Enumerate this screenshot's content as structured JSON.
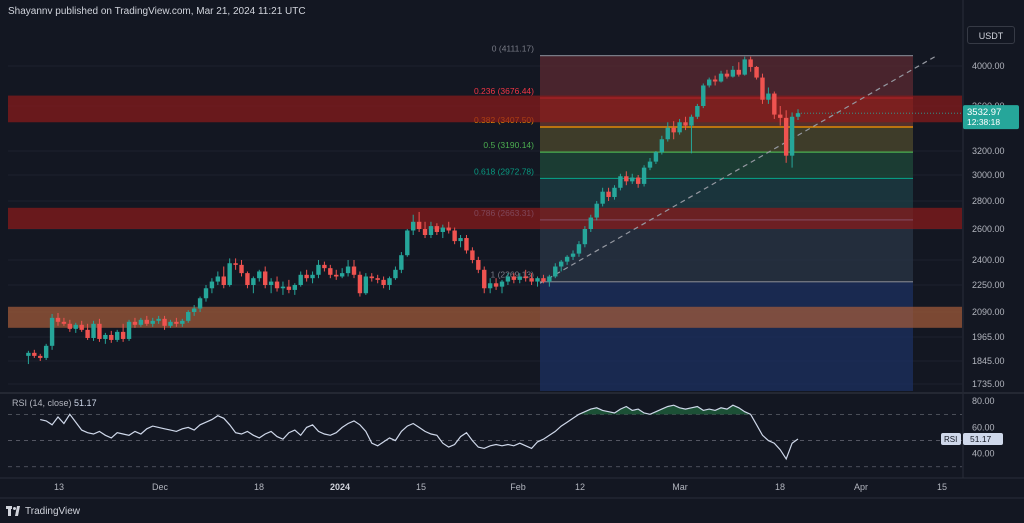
{
  "header": {
    "publisher_line": "Shayannv published on TradingView.com, Mar 21, 2024 11:21 UTC"
  },
  "currency_button": "USDT",
  "footer": {
    "logo_text": "TradingView"
  },
  "colors": {
    "background": "#131722",
    "up": "#26a69a",
    "down": "#ef5350",
    "grid": "#1e222d",
    "text": "#b2b5be",
    "resistance_zone": "#8b1a1a",
    "support_zone": "#a35b3a",
    "rsi_line": "#cfd8ea",
    "price_label": "#26a69a"
  },
  "chart_data": [
    {
      "type": "candlestick",
      "title": "",
      "y_axis_ticks": [
        "4000.00",
        "3600.00",
        "3200.00",
        "3000.00",
        "2800.00",
        "2600.00",
        "2400.00",
        "2250.00",
        "2090.00",
        "1965.00",
        "1845.00",
        "1735.00"
      ],
      "x_axis_ticks": [
        "13",
        "Dec",
        "18",
        "2024",
        "15",
        "Feb",
        "12",
        "Mar",
        "18",
        "Apr",
        "15"
      ],
      "current_price_label": "3532.97",
      "countdown_label": "12:38:18",
      "fibonacci_levels": [
        {
          "label": "0 (4111.17)",
          "ratio": "0",
          "price": 4111.17,
          "color": "#787b86"
        },
        {
          "label": "0.236 (3676.44)",
          "ratio": "0.236",
          "price": 3676.44,
          "color": "#f23645"
        },
        {
          "label": "0.382 (3407.50)",
          "ratio": "0.382",
          "price": 3407.5,
          "color": "#ff9800"
        },
        {
          "label": "0.5 (3190.14)",
          "ratio": "0.5",
          "price": 3190.14,
          "color": "#4caf50"
        },
        {
          "label": "0.618 (2972.78)",
          "ratio": "0.618",
          "price": 2972.78,
          "color": "#089981"
        },
        {
          "label": "0.786 (2663.31)",
          "ratio": "0.786",
          "price": 2663.31,
          "color": "#64b5f6"
        },
        {
          "label": "1 (2269.13)",
          "ratio": "1",
          "price": 2269.13,
          "color": "#787b86"
        }
      ],
      "zones": [
        {
          "name": "resistance",
          "price_low": 3450,
          "price_high": 3700
        },
        {
          "name": "mid-resistance",
          "price_low": 2600,
          "price_high": 2750
        },
        {
          "name": "support",
          "price_low": 2010,
          "price_high": 2120
        }
      ],
      "trendline_from": {
        "date": "2024-02-05",
        "price": 2260
      },
      "trendline_to": {
        "date": "2024-04-12",
        "price": 4110
      },
      "candles": [
        {
          "o": 1870,
          "h": 1895,
          "l": 1830,
          "c": 1885
        },
        {
          "o": 1885,
          "h": 1900,
          "l": 1860,
          "c": 1870
        },
        {
          "o": 1870,
          "h": 1880,
          "l": 1845,
          "c": 1860
        },
        {
          "o": 1860,
          "h": 1930,
          "l": 1850,
          "c": 1920
        },
        {
          "o": 1920,
          "h": 2080,
          "l": 1900,
          "c": 2060
        },
        {
          "o": 2060,
          "h": 2085,
          "l": 2020,
          "c": 2040
        },
        {
          "o": 2040,
          "h": 2060,
          "l": 2020,
          "c": 2030
        },
        {
          "o": 2030,
          "h": 2050,
          "l": 1990,
          "c": 2005
        },
        {
          "o": 2005,
          "h": 2035,
          "l": 1985,
          "c": 2025
        },
        {
          "o": 2025,
          "h": 2045,
          "l": 1990,
          "c": 2000
        },
        {
          "o": 2000,
          "h": 2030,
          "l": 1950,
          "c": 1960
        },
        {
          "o": 1960,
          "h": 2045,
          "l": 1945,
          "c": 2030
        },
        {
          "o": 2030,
          "h": 2055,
          "l": 1940,
          "c": 1955
        },
        {
          "o": 1955,
          "h": 1985,
          "l": 1930,
          "c": 1975
        },
        {
          "o": 1975,
          "h": 1995,
          "l": 1935,
          "c": 1950
        },
        {
          "o": 1950,
          "h": 2000,
          "l": 1940,
          "c": 1990
        },
        {
          "o": 1990,
          "h": 2030,
          "l": 1940,
          "c": 1955
        },
        {
          "o": 1955,
          "h": 2050,
          "l": 1945,
          "c": 2040
        },
        {
          "o": 2040,
          "h": 2060,
          "l": 2010,
          "c": 2025
        },
        {
          "o": 2025,
          "h": 2060,
          "l": 2015,
          "c": 2050
        },
        {
          "o": 2050,
          "h": 2070,
          "l": 2020,
          "c": 2030
        },
        {
          "o": 2030,
          "h": 2060,
          "l": 2015,
          "c": 2045
        },
        {
          "o": 2045,
          "h": 2070,
          "l": 2030,
          "c": 2055
        },
        {
          "o": 2055,
          "h": 2070,
          "l": 2000,
          "c": 2020
        },
        {
          "o": 2020,
          "h": 2050,
          "l": 2010,
          "c": 2040
        },
        {
          "o": 2040,
          "h": 2060,
          "l": 2015,
          "c": 2030
        },
        {
          "o": 2030,
          "h": 2055,
          "l": 2015,
          "c": 2045
        },
        {
          "o": 2045,
          "h": 2100,
          "l": 2035,
          "c": 2090
        },
        {
          "o": 2090,
          "h": 2130,
          "l": 2070,
          "c": 2110
        },
        {
          "o": 2110,
          "h": 2180,
          "l": 2090,
          "c": 2170
        },
        {
          "o": 2170,
          "h": 2250,
          "l": 2150,
          "c": 2230
        },
        {
          "o": 2230,
          "h": 2290,
          "l": 2200,
          "c": 2270
        },
        {
          "o": 2270,
          "h": 2330,
          "l": 2250,
          "c": 2300
        },
        {
          "o": 2300,
          "h": 2360,
          "l": 2230,
          "c": 2250
        },
        {
          "o": 2250,
          "h": 2410,
          "l": 2240,
          "c": 2380
        },
        {
          "o": 2380,
          "h": 2410,
          "l": 2340,
          "c": 2370
        },
        {
          "o": 2370,
          "h": 2400,
          "l": 2300,
          "c": 2320
        },
        {
          "o": 2320,
          "h": 2330,
          "l": 2230,
          "c": 2250
        },
        {
          "o": 2250,
          "h": 2300,
          "l": 2200,
          "c": 2290
        },
        {
          "o": 2290,
          "h": 2340,
          "l": 2270,
          "c": 2330
        },
        {
          "o": 2330,
          "h": 2360,
          "l": 2230,
          "c": 2250
        },
        {
          "o": 2250,
          "h": 2290,
          "l": 2200,
          "c": 2270
        },
        {
          "o": 2270,
          "h": 2300,
          "l": 2210,
          "c": 2230
        },
        {
          "o": 2230,
          "h": 2270,
          "l": 2190,
          "c": 2240
        },
        {
          "o": 2240,
          "h": 2280,
          "l": 2200,
          "c": 2220
        },
        {
          "o": 2220,
          "h": 2260,
          "l": 2190,
          "c": 2250
        },
        {
          "o": 2250,
          "h": 2330,
          "l": 2240,
          "c": 2310
        },
        {
          "o": 2310,
          "h": 2340,
          "l": 2270,
          "c": 2290
        },
        {
          "o": 2290,
          "h": 2330,
          "l": 2260,
          "c": 2310
        },
        {
          "o": 2310,
          "h": 2400,
          "l": 2290,
          "c": 2370
        },
        {
          "o": 2370,
          "h": 2390,
          "l": 2330,
          "c": 2350
        },
        {
          "o": 2350,
          "h": 2370,
          "l": 2290,
          "c": 2310
        },
        {
          "o": 2310,
          "h": 2340,
          "l": 2280,
          "c": 2300
        },
        {
          "o": 2300,
          "h": 2350,
          "l": 2290,
          "c": 2320
        },
        {
          "o": 2320,
          "h": 2400,
          "l": 2300,
          "c": 2360
        },
        {
          "o": 2360,
          "h": 2400,
          "l": 2290,
          "c": 2310
        },
        {
          "o": 2310,
          "h": 2330,
          "l": 2180,
          "c": 2200
        },
        {
          "o": 2200,
          "h": 2320,
          "l": 2190,
          "c": 2300
        },
        {
          "o": 2300,
          "h": 2320,
          "l": 2270,
          "c": 2290
        },
        {
          "o": 2290,
          "h": 2310,
          "l": 2260,
          "c": 2280
        },
        {
          "o": 2280,
          "h": 2300,
          "l": 2230,
          "c": 2250
        },
        {
          "o": 2250,
          "h": 2300,
          "l": 2220,
          "c": 2290
        },
        {
          "o": 2290,
          "h": 2360,
          "l": 2280,
          "c": 2340
        },
        {
          "o": 2340,
          "h": 2450,
          "l": 2320,
          "c": 2430
        },
        {
          "o": 2430,
          "h": 2600,
          "l": 2420,
          "c": 2590
        },
        {
          "o": 2590,
          "h": 2700,
          "l": 2560,
          "c": 2650
        },
        {
          "o": 2650,
          "h": 2720,
          "l": 2580,
          "c": 2600
        },
        {
          "o": 2600,
          "h": 2650,
          "l": 2540,
          "c": 2560
        },
        {
          "o": 2560,
          "h": 2650,
          "l": 2540,
          "c": 2620
        },
        {
          "o": 2620,
          "h": 2640,
          "l": 2560,
          "c": 2580
        },
        {
          "o": 2580,
          "h": 2630,
          "l": 2540,
          "c": 2610
        },
        {
          "o": 2610,
          "h": 2650,
          "l": 2570,
          "c": 2590
        },
        {
          "o": 2590,
          "h": 2610,
          "l": 2500,
          "c": 2520
        },
        {
          "o": 2520,
          "h": 2560,
          "l": 2480,
          "c": 2540
        },
        {
          "o": 2540,
          "h": 2560,
          "l": 2440,
          "c": 2460
        },
        {
          "o": 2460,
          "h": 2480,
          "l": 2380,
          "c": 2400
        },
        {
          "o": 2400,
          "h": 2420,
          "l": 2320,
          "c": 2340
        },
        {
          "o": 2340,
          "h": 2360,
          "l": 2200,
          "c": 2230
        },
        {
          "o": 2230,
          "h": 2290,
          "l": 2200,
          "c": 2260
        },
        {
          "o": 2260,
          "h": 2290,
          "l": 2220,
          "c": 2240
        },
        {
          "o": 2240,
          "h": 2280,
          "l": 2200,
          "c": 2270
        },
        {
          "o": 2270,
          "h": 2320,
          "l": 2250,
          "c": 2300
        },
        {
          "o": 2300,
          "h": 2320,
          "l": 2260,
          "c": 2280
        },
        {
          "o": 2280,
          "h": 2320,
          "l": 2260,
          "c": 2300
        },
        {
          "o": 2300,
          "h": 2340,
          "l": 2270,
          "c": 2290
        },
        {
          "o": 2290,
          "h": 2320,
          "l": 2250,
          "c": 2270
        },
        {
          "o": 2270,
          "h": 2300,
          "l": 2240,
          "c": 2290
        },
        {
          "o": 2290,
          "h": 2310,
          "l": 2260,
          "c": 2270
        },
        {
          "o": 2270,
          "h": 2310,
          "l": 2240,
          "c": 2300
        },
        {
          "o": 2300,
          "h": 2380,
          "l": 2290,
          "c": 2360
        },
        {
          "o": 2360,
          "h": 2400,
          "l": 2330,
          "c": 2390
        },
        {
          "o": 2390,
          "h": 2430,
          "l": 2370,
          "c": 2420
        },
        {
          "o": 2420,
          "h": 2460,
          "l": 2400,
          "c": 2440
        },
        {
          "o": 2440,
          "h": 2520,
          "l": 2420,
          "c": 2500
        },
        {
          "o": 2500,
          "h": 2620,
          "l": 2480,
          "c": 2600
        },
        {
          "o": 2600,
          "h": 2700,
          "l": 2580,
          "c": 2680
        },
        {
          "o": 2680,
          "h": 2800,
          "l": 2660,
          "c": 2780
        },
        {
          "o": 2780,
          "h": 2900,
          "l": 2760,
          "c": 2870
        },
        {
          "o": 2870,
          "h": 2900,
          "l": 2800,
          "c": 2830
        },
        {
          "o": 2830,
          "h": 2920,
          "l": 2810,
          "c": 2900
        },
        {
          "o": 2900,
          "h": 3010,
          "l": 2880,
          "c": 2990
        },
        {
          "o": 2990,
          "h": 3030,
          "l": 2920,
          "c": 2950
        },
        {
          "o": 2950,
          "h": 3010,
          "l": 2930,
          "c": 2980
        },
        {
          "o": 2980,
          "h": 3000,
          "l": 2900,
          "c": 2930
        },
        {
          "o": 2930,
          "h": 3080,
          "l": 2910,
          "c": 3060
        },
        {
          "o": 3060,
          "h": 3140,
          "l": 3040,
          "c": 3110
        },
        {
          "o": 3110,
          "h": 3200,
          "l": 3090,
          "c": 3190
        },
        {
          "o": 3190,
          "h": 3330,
          "l": 3170,
          "c": 3300
        },
        {
          "o": 3300,
          "h": 3450,
          "l": 3280,
          "c": 3400
        },
        {
          "o": 3400,
          "h": 3460,
          "l": 3300,
          "c": 3360
        },
        {
          "o": 3360,
          "h": 3480,
          "l": 3340,
          "c": 3450
        },
        {
          "o": 3450,
          "h": 3500,
          "l": 3380,
          "c": 3420
        },
        {
          "o": 3420,
          "h": 3520,
          "l": 3180,
          "c": 3500
        },
        {
          "o": 3500,
          "h": 3620,
          "l": 3480,
          "c": 3600
        },
        {
          "o": 3600,
          "h": 3820,
          "l": 3580,
          "c": 3800
        },
        {
          "o": 3800,
          "h": 3880,
          "l": 3780,
          "c": 3860
        },
        {
          "o": 3860,
          "h": 3900,
          "l": 3800,
          "c": 3840
        },
        {
          "o": 3840,
          "h": 3950,
          "l": 3830,
          "c": 3920
        },
        {
          "o": 3920,
          "h": 3960,
          "l": 3870,
          "c": 3890
        },
        {
          "o": 3890,
          "h": 4000,
          "l": 3880,
          "c": 3960
        },
        {
          "o": 3960,
          "h": 4040,
          "l": 3890,
          "c": 3910
        },
        {
          "o": 3910,
          "h": 4100,
          "l": 3900,
          "c": 4070
        },
        {
          "o": 4070,
          "h": 4100,
          "l": 3940,
          "c": 3990
        },
        {
          "o": 3990,
          "h": 4000,
          "l": 3860,
          "c": 3880
        },
        {
          "o": 3880,
          "h": 3920,
          "l": 3620,
          "c": 3660
        },
        {
          "o": 3660,
          "h": 3780,
          "l": 3620,
          "c": 3720
        },
        {
          "o": 3720,
          "h": 3740,
          "l": 3480,
          "c": 3520
        },
        {
          "o": 3520,
          "h": 3600,
          "l": 3420,
          "c": 3490
        },
        {
          "o": 3490,
          "h": 3560,
          "l": 3100,
          "c": 3160
        },
        {
          "o": 3160,
          "h": 3540,
          "l": 3060,
          "c": 3500
        },
        {
          "o": 3500,
          "h": 3570,
          "l": 3470,
          "c": 3533
        }
      ]
    },
    {
      "type": "line",
      "title": "RSI (14, close)",
      "title_prefix": "RSI",
      "title_params": "(14, close)",
      "value_label": "51.17",
      "badge_label": "RSI",
      "y_axis_ticks": [
        "80.00",
        "60.00",
        "40.00"
      ],
      "overbought": 70,
      "oversold": 30,
      "midline": 50,
      "ylim": [
        26,
        84
      ],
      "values": [
        66,
        65,
        62,
        68,
        63,
        70,
        64,
        58,
        56,
        55,
        57,
        54,
        52,
        56,
        55,
        54,
        57,
        55,
        59,
        61,
        60,
        59,
        58,
        57,
        59,
        60,
        58,
        62,
        64,
        66,
        69,
        67,
        62,
        56,
        55,
        57,
        54,
        52,
        55,
        57,
        53,
        51,
        56,
        58,
        54,
        60,
        62,
        57,
        55,
        54,
        56,
        60,
        63,
        65,
        62,
        57,
        48,
        46,
        49,
        52,
        50,
        57,
        61,
        63,
        60,
        57,
        55,
        54,
        48,
        45,
        47,
        53,
        56,
        50,
        45,
        44,
        46,
        47,
        46,
        47,
        46,
        48,
        46,
        44,
        49,
        51,
        54,
        57,
        61,
        64,
        67,
        70,
        72,
        74,
        75,
        73,
        72,
        71,
        74,
        76,
        73,
        74,
        71,
        70,
        72,
        74,
        76,
        77,
        75,
        74,
        75,
        76,
        73,
        74,
        73,
        75,
        74,
        77,
        75,
        72,
        70,
        62,
        54,
        50,
        48,
        43,
        36,
        48,
        51.17
      ]
    }
  ]
}
